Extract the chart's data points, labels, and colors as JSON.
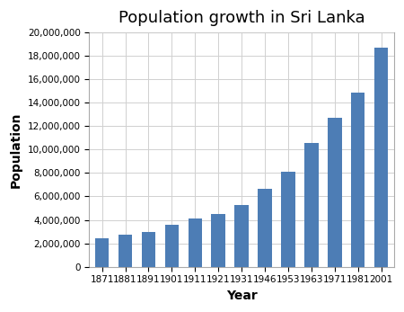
{
  "title": "Population growth in Sri Lanka",
  "xlabel": "Year",
  "ylabel": "Population",
  "categories": [
    "1871",
    "1881",
    "1891",
    "1901",
    "1911",
    "1921",
    "1931",
    "1946",
    "1953",
    "1963",
    "1971",
    "1981",
    "2001"
  ],
  "values": [
    2400000,
    2760000,
    3000000,
    3560000,
    4106000,
    4498000,
    5307000,
    6657000,
    8098000,
    10582000,
    12689000,
    14850000,
    18732000
  ],
  "bar_color": "#4d7db5",
  "ylim": [
    0,
    20000000
  ],
  "ytick_step": 2000000,
  "background_color": "#ffffff",
  "plot_bg_color": "#ffffff",
  "grid_color": "#d0d0d0",
  "title_fontsize": 13,
  "axis_label_fontsize": 10,
  "xtick_fontsize": 7.5,
  "ytick_fontsize": 7.5
}
